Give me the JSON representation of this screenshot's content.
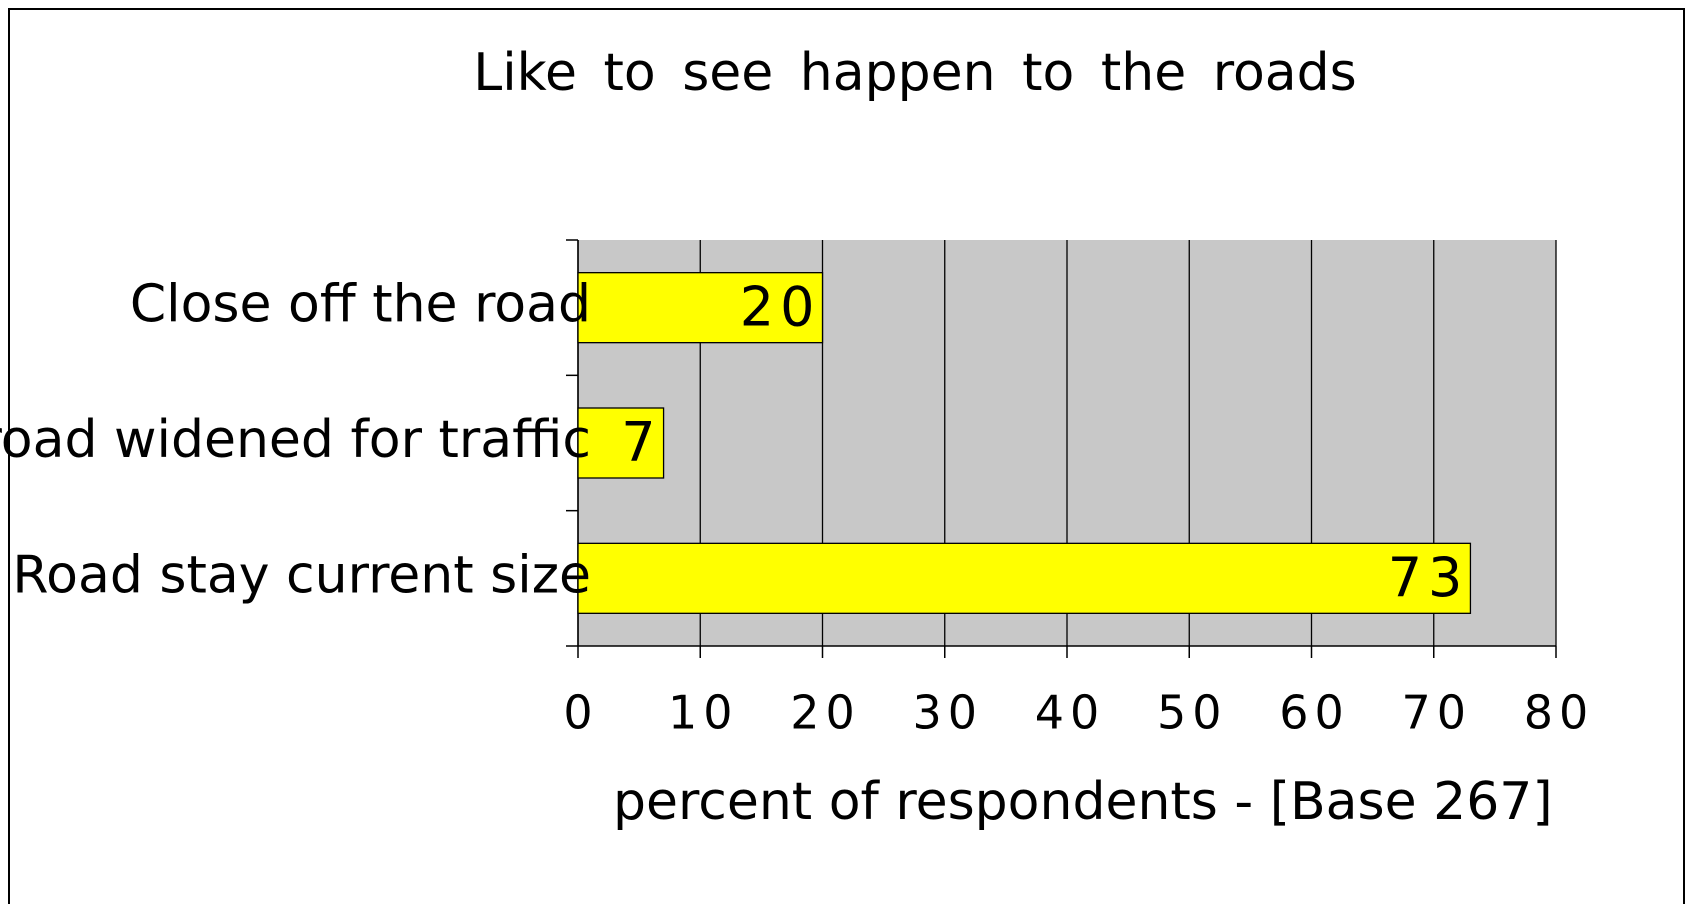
{
  "chart_data": {
    "type": "bar",
    "orientation": "horizontal",
    "title": "Like to see happen to the roads",
    "x_label": "percent  of  respondents   - [Base  267]",
    "categories": [
      "Close off the road",
      "road widened for traffic",
      "Road stay current size"
    ],
    "values": [
      20,
      7,
      73
    ],
    "color": "#ffff00",
    "xlim": [
      0,
      80
    ],
    "xticks": [
      0,
      10,
      20,
      30,
      40,
      50,
      60,
      70,
      80
    ],
    "grid": true
  }
}
